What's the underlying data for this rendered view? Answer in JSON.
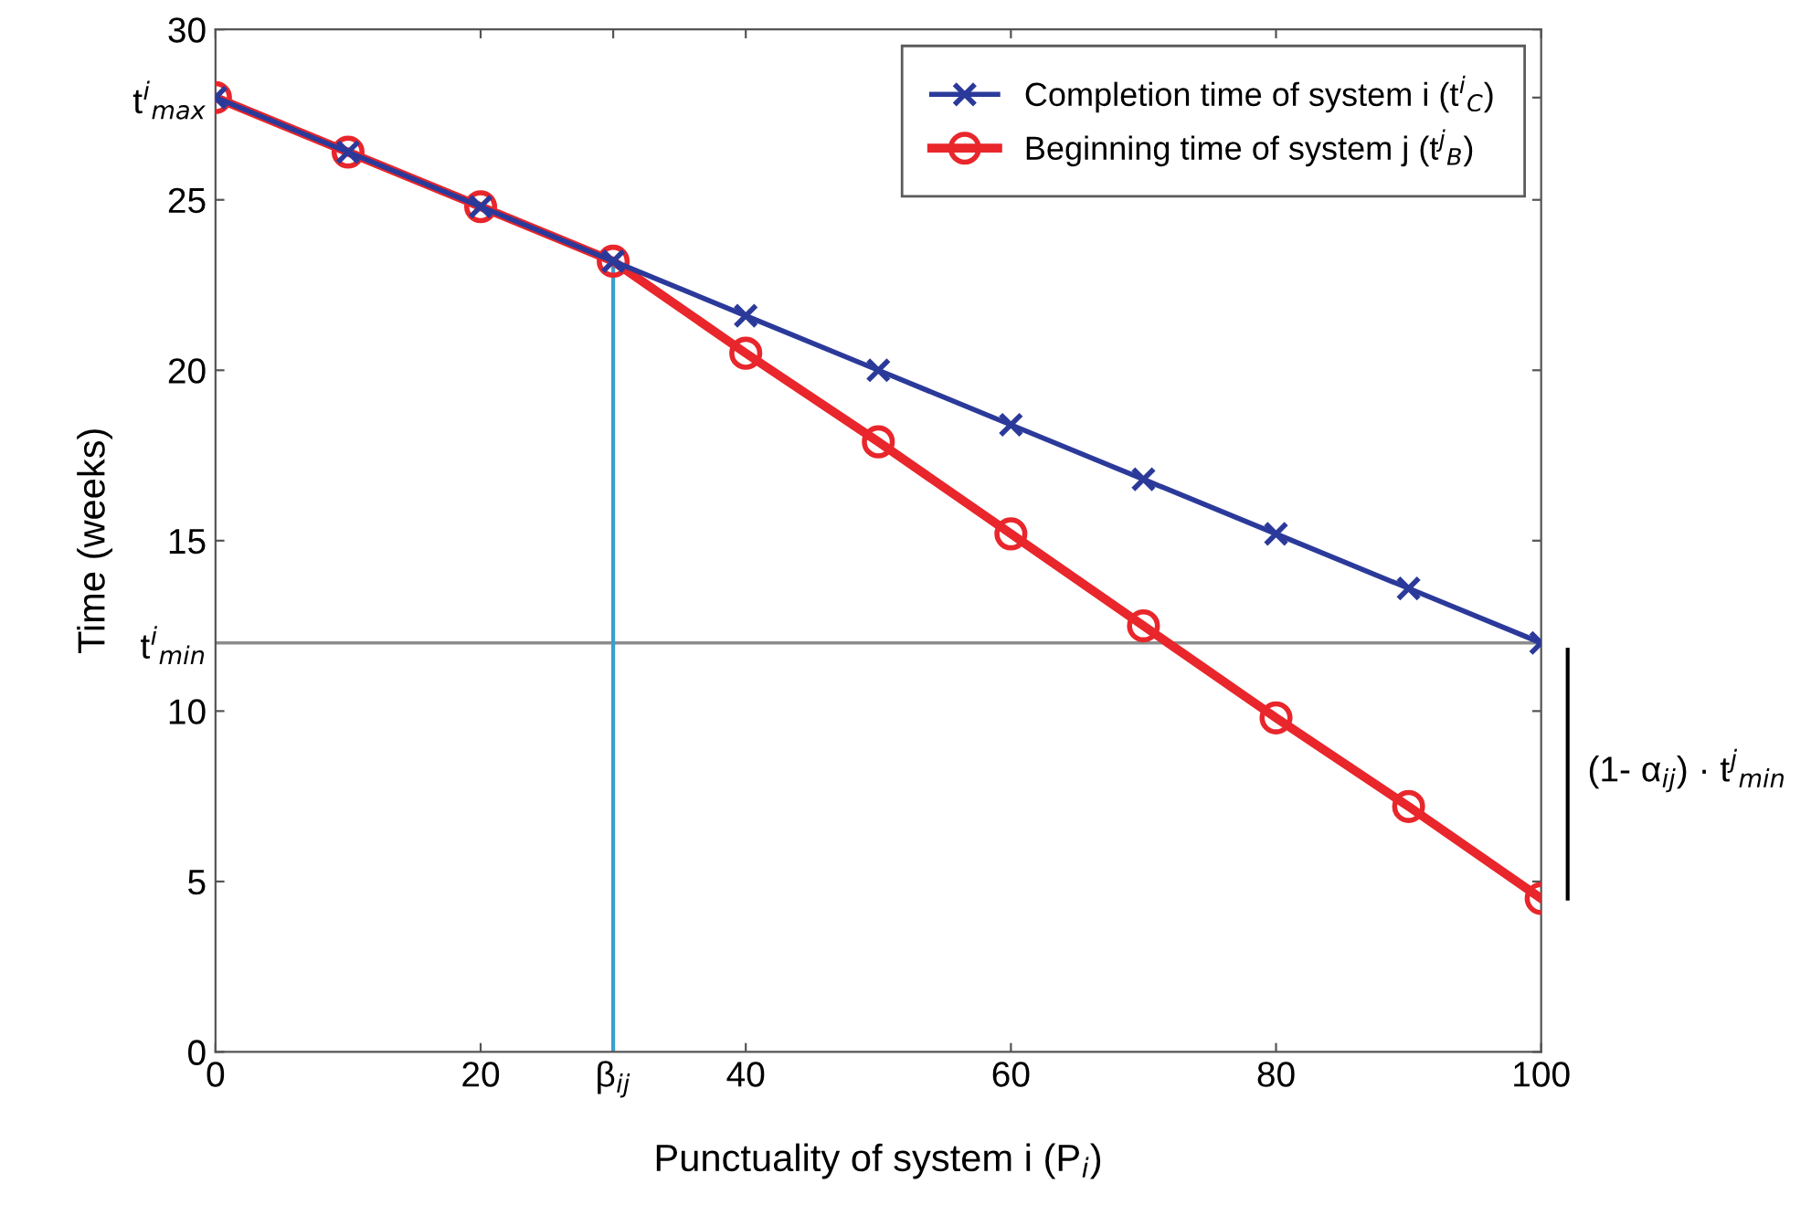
{
  "chart_data": {
    "type": "line",
    "xlabel": "Punctuality of system i (P$_{i}$)",
    "ylabel": "Time (weeks)",
    "x": [
      0,
      10,
      20,
      30,
      40,
      50,
      60,
      70,
      80,
      90,
      100
    ],
    "series": [
      {
        "name": "Completion time of system i (t$^{i}$$_{C}$)",
        "color": "#2b3a9a",
        "marker": "cross",
        "values": [
          28,
          26.4,
          24.8,
          23.2,
          21.6,
          20.0,
          18.4,
          16.8,
          15.2,
          13.6,
          12.0
        ]
      },
      {
        "name": "Beginning time of system j (t$^{j}$$_{B}$)",
        "color": "#e8262b",
        "marker": "circle",
        "values": [
          28,
          26.4,
          24.8,
          23.2,
          20.5,
          17.9,
          15.2,
          12.5,
          9.8,
          7.2,
          4.5
        ]
      }
    ],
    "xlim": [
      0,
      100
    ],
    "ylim": [
      0,
      30
    ],
    "xticks": [
      0,
      20,
      {
        "value": 30,
        "label": "β$_{ij}$"
      },
      40,
      60,
      80,
      100
    ],
    "yticks": [
      0,
      5,
      10,
      {
        "value": 12,
        "label": "t$^{i}$$_{min}$"
      },
      15,
      20,
      25,
      {
        "value": 28,
        "label": "t$^{i}$$_{max}$"
      },
      30
    ],
    "ref_lines": [
      {
        "axis": "y",
        "value": 12,
        "label": null,
        "color": "#8c8c8c"
      },
      {
        "axis": "x",
        "value": 30,
        "label": null,
        "color": "#3b9ed0"
      }
    ],
    "annotations": [
      "(1- α$_{ij}$) · t$^{j}$$_{min}$"
    ],
    "legend": "top right",
    "grid": false,
    "line_style": "solid"
  }
}
